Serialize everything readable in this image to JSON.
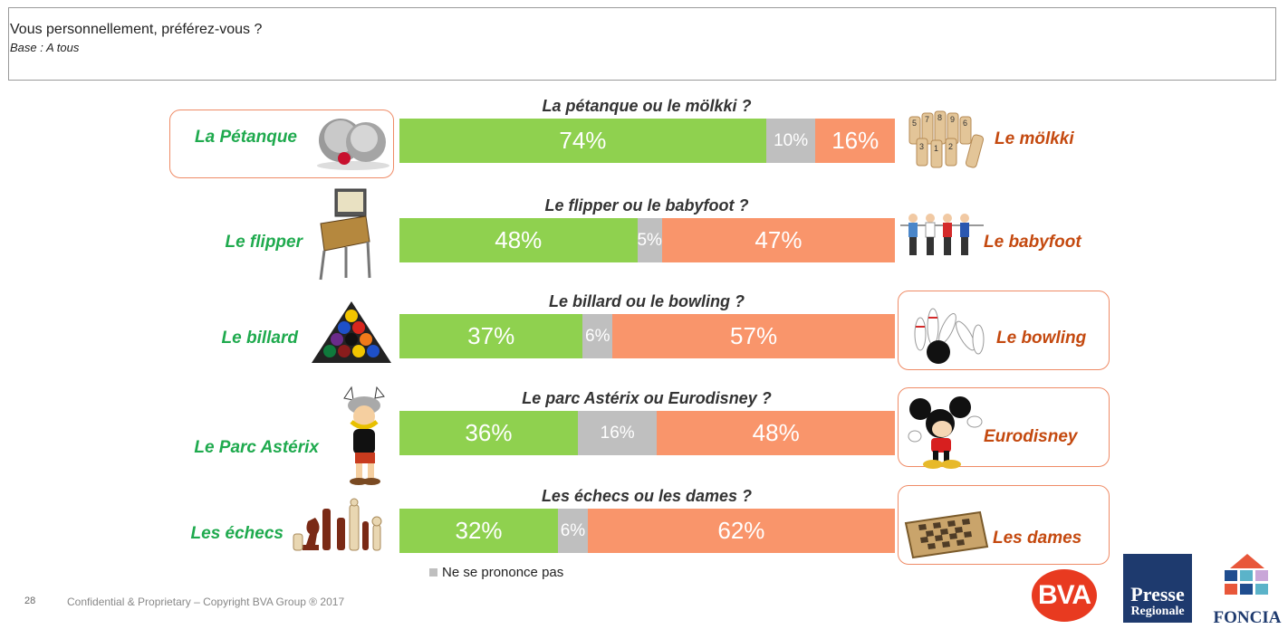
{
  "header": {
    "title": "Vous personnellement, préférez-vous ?",
    "base": "Base : A tous"
  },
  "colors": {
    "left": "#8fd14f",
    "nsp": "#bfbfbf",
    "right": "#f9956b",
    "left_text": "#1faa4e",
    "right_text": "#c4490f",
    "highlight_border": "#ef8b66"
  },
  "chart_data": {
    "type": "bar",
    "orientation": "horizontal-stacked-100",
    "legend": {
      "nsp_label": "Ne se prononce pas"
    },
    "rows": [
      {
        "question": "La pétanque ou le mölkki ?",
        "left_label": "La Pétanque",
        "right_label": "Le mölkki",
        "left_value": 74,
        "nsp_value": 10,
        "right_value": 16,
        "left_text": "74%",
        "nsp_text": "10%",
        "right_text": "16%",
        "winner": "left",
        "left_icon": "petanque-balls-icon",
        "right_icon": "molkky-pins-icon"
      },
      {
        "question": "Le flipper ou le babyfoot ?",
        "left_label": "Le flipper",
        "right_label": "Le babyfoot",
        "left_value": 48,
        "nsp_value": 5,
        "right_value": 47,
        "left_text": "48%",
        "nsp_text": "5%",
        "right_text": "47%",
        "winner": "none",
        "left_icon": "pinball-machine-icon",
        "right_icon": "foosball-players-icon"
      },
      {
        "question": "Le billard ou le bowling ?",
        "left_label": "Le billard",
        "right_label": "Le bowling",
        "left_value": 37,
        "nsp_value": 6,
        "right_value": 57,
        "left_text": "37%",
        "nsp_text": "6%",
        "right_text": "57%",
        "winner": "right",
        "left_icon": "billiard-balls-rack-icon",
        "right_icon": "bowling-pins-icon"
      },
      {
        "question": "Le parc Astérix ou Eurodisney ?",
        "left_label": "Le Parc Astérix",
        "right_label": "Eurodisney",
        "left_value": 36,
        "nsp_value": 16,
        "right_value": 48,
        "left_text": "36%",
        "nsp_text": "16%",
        "right_text": "48%",
        "winner": "right",
        "left_icon": "asterix-character-icon",
        "right_icon": "mickey-mouse-icon"
      },
      {
        "question": "Les échecs ou les dames ?",
        "left_label": "Les échecs",
        "right_label": "Les dames",
        "left_value": 32,
        "nsp_value": 6,
        "right_value": 62,
        "left_text": "32%",
        "nsp_text": "6%",
        "right_text": "62%",
        "winner": "right",
        "left_icon": "chess-pieces-icon",
        "right_icon": "checkers-board-icon"
      }
    ]
  },
  "footer": {
    "page_number": "28",
    "copyright": "Confidential & Proprietary – Copyright BVA Group ®  2017"
  },
  "logos": {
    "bva": "BVA",
    "presse_line1": "Presse",
    "presse_line2": "Regionale",
    "foncia": "FONCIA"
  }
}
